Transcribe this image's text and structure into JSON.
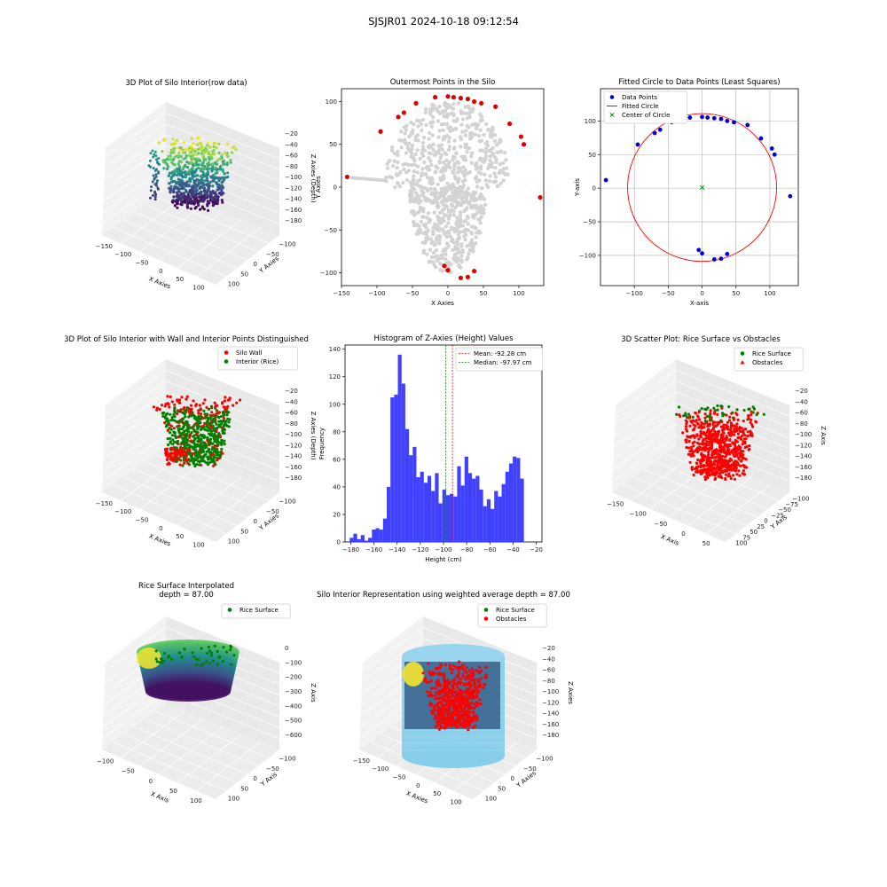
{
  "suptitle": "SJSJR01 2024-10-18 09:12:54",
  "chart_data": [
    {
      "type": "scatter3d",
      "title": "3D Plot of Silo Interior(row data)",
      "xlabel": "X Axies",
      "ylabel": "Y Axies",
      "zlabel": "Z Axies (Depth)",
      "x_ticks": [
        "−150",
        "−100",
        "−50",
        "0",
        "50",
        "100"
      ],
      "y_ticks": [
        "100",
        "50",
        "0",
        "−50",
        "−100"
      ],
      "z_ticks": [
        "−20",
        "−40",
        "−60",
        "−80",
        "−100",
        "−120",
        "−140",
        "−160",
        "−180"
      ],
      "colormap": "viridis"
    },
    {
      "type": "scatter",
      "title": "Outermost Points in the Silo",
      "xlabel": "X Axies",
      "ylabel": "Y Axies",
      "xlim": [
        -150,
        135
      ],
      "ylim": [
        -115,
        115
      ],
      "x_ticks": [
        -150,
        -100,
        -50,
        0,
        50,
        100
      ],
      "y_ticks": [
        -100,
        -50,
        0,
        50,
        100
      ],
      "series": [
        {
          "color": "#d3d3d3",
          "role": "all points"
        },
        {
          "color": "#e00000",
          "role": "outermost points",
          "points": [
            [
              -142,
              12
            ],
            [
              -95,
              65
            ],
            [
              -70,
              82
            ],
            [
              -62,
              87
            ],
            [
              -45,
              98
            ],
            [
              -18,
              105
            ],
            [
              0,
              106
            ],
            [
              8,
              105
            ],
            [
              18,
              104
            ],
            [
              28,
              103
            ],
            [
              37,
              100
            ],
            [
              47,
              98
            ],
            [
              67,
              94
            ],
            [
              87,
              74
            ],
            [
              103,
              59
            ],
            [
              107,
              50
            ],
            [
              130,
              -12
            ],
            [
              -5,
              -92
            ],
            [
              0,
              -97
            ],
            [
              18,
              -106
            ],
            [
              28,
              -105
            ],
            [
              37,
              -98
            ]
          ]
        }
      ]
    },
    {
      "type": "scatter",
      "title": "Fitted Circle to Data Points (Least Squares)",
      "xlabel": "X-axis",
      "ylabel": "Y-axis",
      "xlim": [
        -150,
        142
      ],
      "ylim": [
        -145,
        148
      ],
      "x_ticks": [
        -100,
        -50,
        0,
        50,
        100
      ],
      "y_ticks": [
        -100,
        -50,
        0,
        50,
        100
      ],
      "grid": true,
      "legend": "top-left",
      "legend_entries": [
        "Data Points",
        "Fitted Circle",
        "Center of Circle"
      ],
      "circle": {
        "cx": 0,
        "cy": 1,
        "r": 110,
        "color": "#ff0000"
      },
      "center": {
        "x": 0,
        "y": 1,
        "color": "#008000"
      },
      "points": [
        [
          -142,
          12
        ],
        [
          -95,
          65
        ],
        [
          -70,
          82
        ],
        [
          -62,
          87
        ],
        [
          -45,
          98
        ],
        [
          -18,
          105
        ],
        [
          0,
          106
        ],
        [
          8,
          105
        ],
        [
          18,
          104
        ],
        [
          28,
          103
        ],
        [
          37,
          100
        ],
        [
          47,
          98
        ],
        [
          67,
          94
        ],
        [
          87,
          74
        ],
        [
          103,
          59
        ],
        [
          107,
          50
        ],
        [
          130,
          -12
        ],
        [
          -5,
          -92
        ],
        [
          0,
          -97
        ],
        [
          18,
          -106
        ],
        [
          28,
          -105
        ],
        [
          37,
          -98
        ]
      ],
      "point_color": "#0000cc"
    },
    {
      "type": "scatter3d",
      "title": "3D Plot of Silo Interior with Wall and Interior Points Distinguished",
      "xlabel": "X Axies",
      "ylabel": "Y Axies",
      "zlabel": "Z Axies (Depth)",
      "x_ticks": [
        "−150",
        "−100",
        "−50",
        "0",
        "50",
        "100"
      ],
      "y_ticks": [
        "100",
        "50",
        "0",
        "−50",
        "−100"
      ],
      "z_ticks": [
        "−20",
        "−40",
        "−60",
        "−80",
        "−100",
        "−120",
        "−140",
        "−160",
        "−180"
      ],
      "legend": "top-right",
      "legend_entries": [
        "Silo Wall",
        "Interior (Rice)"
      ],
      "colors": [
        "#ff0000",
        "#008000"
      ]
    },
    {
      "type": "bar",
      "title": "Histogram of Z-Axies (Height) Values",
      "xlabel": "Height (cm)",
      "ylabel": "Frequency",
      "xlim": [
        -185,
        -15
      ],
      "ylim": [
        0,
        143
      ],
      "x_ticks": [
        -180,
        -160,
        -140,
        -120,
        -100,
        -80,
        -60,
        -40,
        -20
      ],
      "y_ticks": [
        0,
        20,
        40,
        60,
        80,
        100,
        120,
        140
      ],
      "bin_start": -181,
      "bin_width": 3.2,
      "values": [
        3,
        6,
        2,
        5,
        1,
        3,
        9,
        10,
        9,
        17,
        40,
        105,
        107,
        136,
        115,
        82,
        63,
        69,
        47,
        51,
        43,
        48,
        37,
        50,
        28,
        38,
        34,
        35,
        33,
        55,
        41,
        62,
        50,
        46,
        48,
        38,
        26,
        31,
        24,
        37,
        33,
        42,
        51,
        57,
        62,
        61,
        46
      ],
      "bar_color": "#4040ff",
      "mean": -92.28,
      "median": -97.97,
      "legend": "top-right",
      "legend_entries": [
        "Mean: -92.28 cm",
        "Median: -97.97 cm"
      ]
    },
    {
      "type": "scatter3d",
      "title": "3D Scatter Plot: Rice Surface vs Obstacles",
      "xlabel": "X Axis",
      "ylabel": "Y Axis",
      "zlabel": "Z Axis",
      "x_ticks": [
        "−150",
        "−100",
        "−50",
        "0",
        "50"
      ],
      "y_ticks": [
        "100",
        "75",
        "50",
        "25",
        "0",
        "−25",
        "−50",
        "−75",
        "−100"
      ],
      "z_ticks": [
        "−20",
        "−40",
        "−60",
        "−80",
        "−100",
        "−120",
        "−140",
        "−160",
        "−180"
      ],
      "legend": "top-right",
      "legend_entries": [
        "Rice Surface",
        "Obstacles"
      ],
      "colors": [
        "#008000",
        "#ff0000"
      ]
    },
    {
      "type": "surface3d",
      "title": "Rice Surface Interpolated",
      "subtitle": "depth = 87.00",
      "xlabel": "X Axis",
      "ylabel": "Y Axis",
      "zlabel": "Z Axis",
      "x_ticks": [
        "−100",
        "−50",
        "0",
        "50",
        "100"
      ],
      "y_ticks": [
        "100",
        "50",
        "0",
        "−50",
        "−100"
      ],
      "z_ticks": [
        "0",
        "−100",
        "−200",
        "−300",
        "−400",
        "−500",
        "−600"
      ],
      "legend": "top-right",
      "legend_entries": [
        "Rice Surface"
      ],
      "colors": [
        "#008000"
      ]
    },
    {
      "type": "surface3d",
      "title": "Silo Interior Representation using weighted average depth = 87.00",
      "xlabel": "X Axies",
      "ylabel": "Y Axies",
      "zlabel": "Z Axies",
      "x_ticks": [
        "−150",
        "−100",
        "−50",
        "0",
        "50",
        "100"
      ],
      "y_ticks": [
        "100",
        "50",
        "0",
        "−50",
        "−100"
      ],
      "z_ticks": [
        "−20",
        "−40",
        "−60",
        "−80",
        "−100",
        "−120",
        "−140",
        "−160",
        "−180"
      ],
      "legend": "top-right",
      "legend_entries": [
        "Rice Surface",
        "Obstacles"
      ],
      "colors": [
        "#008000",
        "#ff0000",
        "#87ceeb"
      ]
    }
  ]
}
